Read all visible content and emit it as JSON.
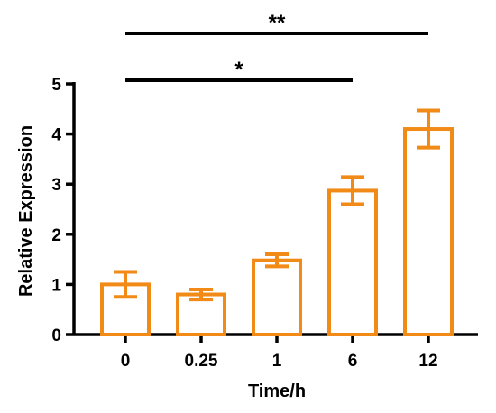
{
  "chart_data": {
    "type": "bar",
    "categories": [
      "0",
      "0.25",
      "1",
      "6",
      "12"
    ],
    "values": [
      1.0,
      0.8,
      1.48,
      2.87,
      4.1
    ],
    "errors": [
      0.25,
      0.1,
      0.12,
      0.27,
      0.37
    ],
    "xlabel": "Time/h",
    "ylabel": "Relative Expression",
    "ylim": [
      0,
      5
    ],
    "yticks": [
      "0",
      "1",
      "2",
      "3",
      "4",
      "5"
    ],
    "grid": false,
    "bar_color": "#F28A17",
    "significance": [
      {
        "from": "0",
        "to": "12",
        "label": "**"
      },
      {
        "from": "0",
        "to": "6",
        "label": "*"
      }
    ]
  }
}
